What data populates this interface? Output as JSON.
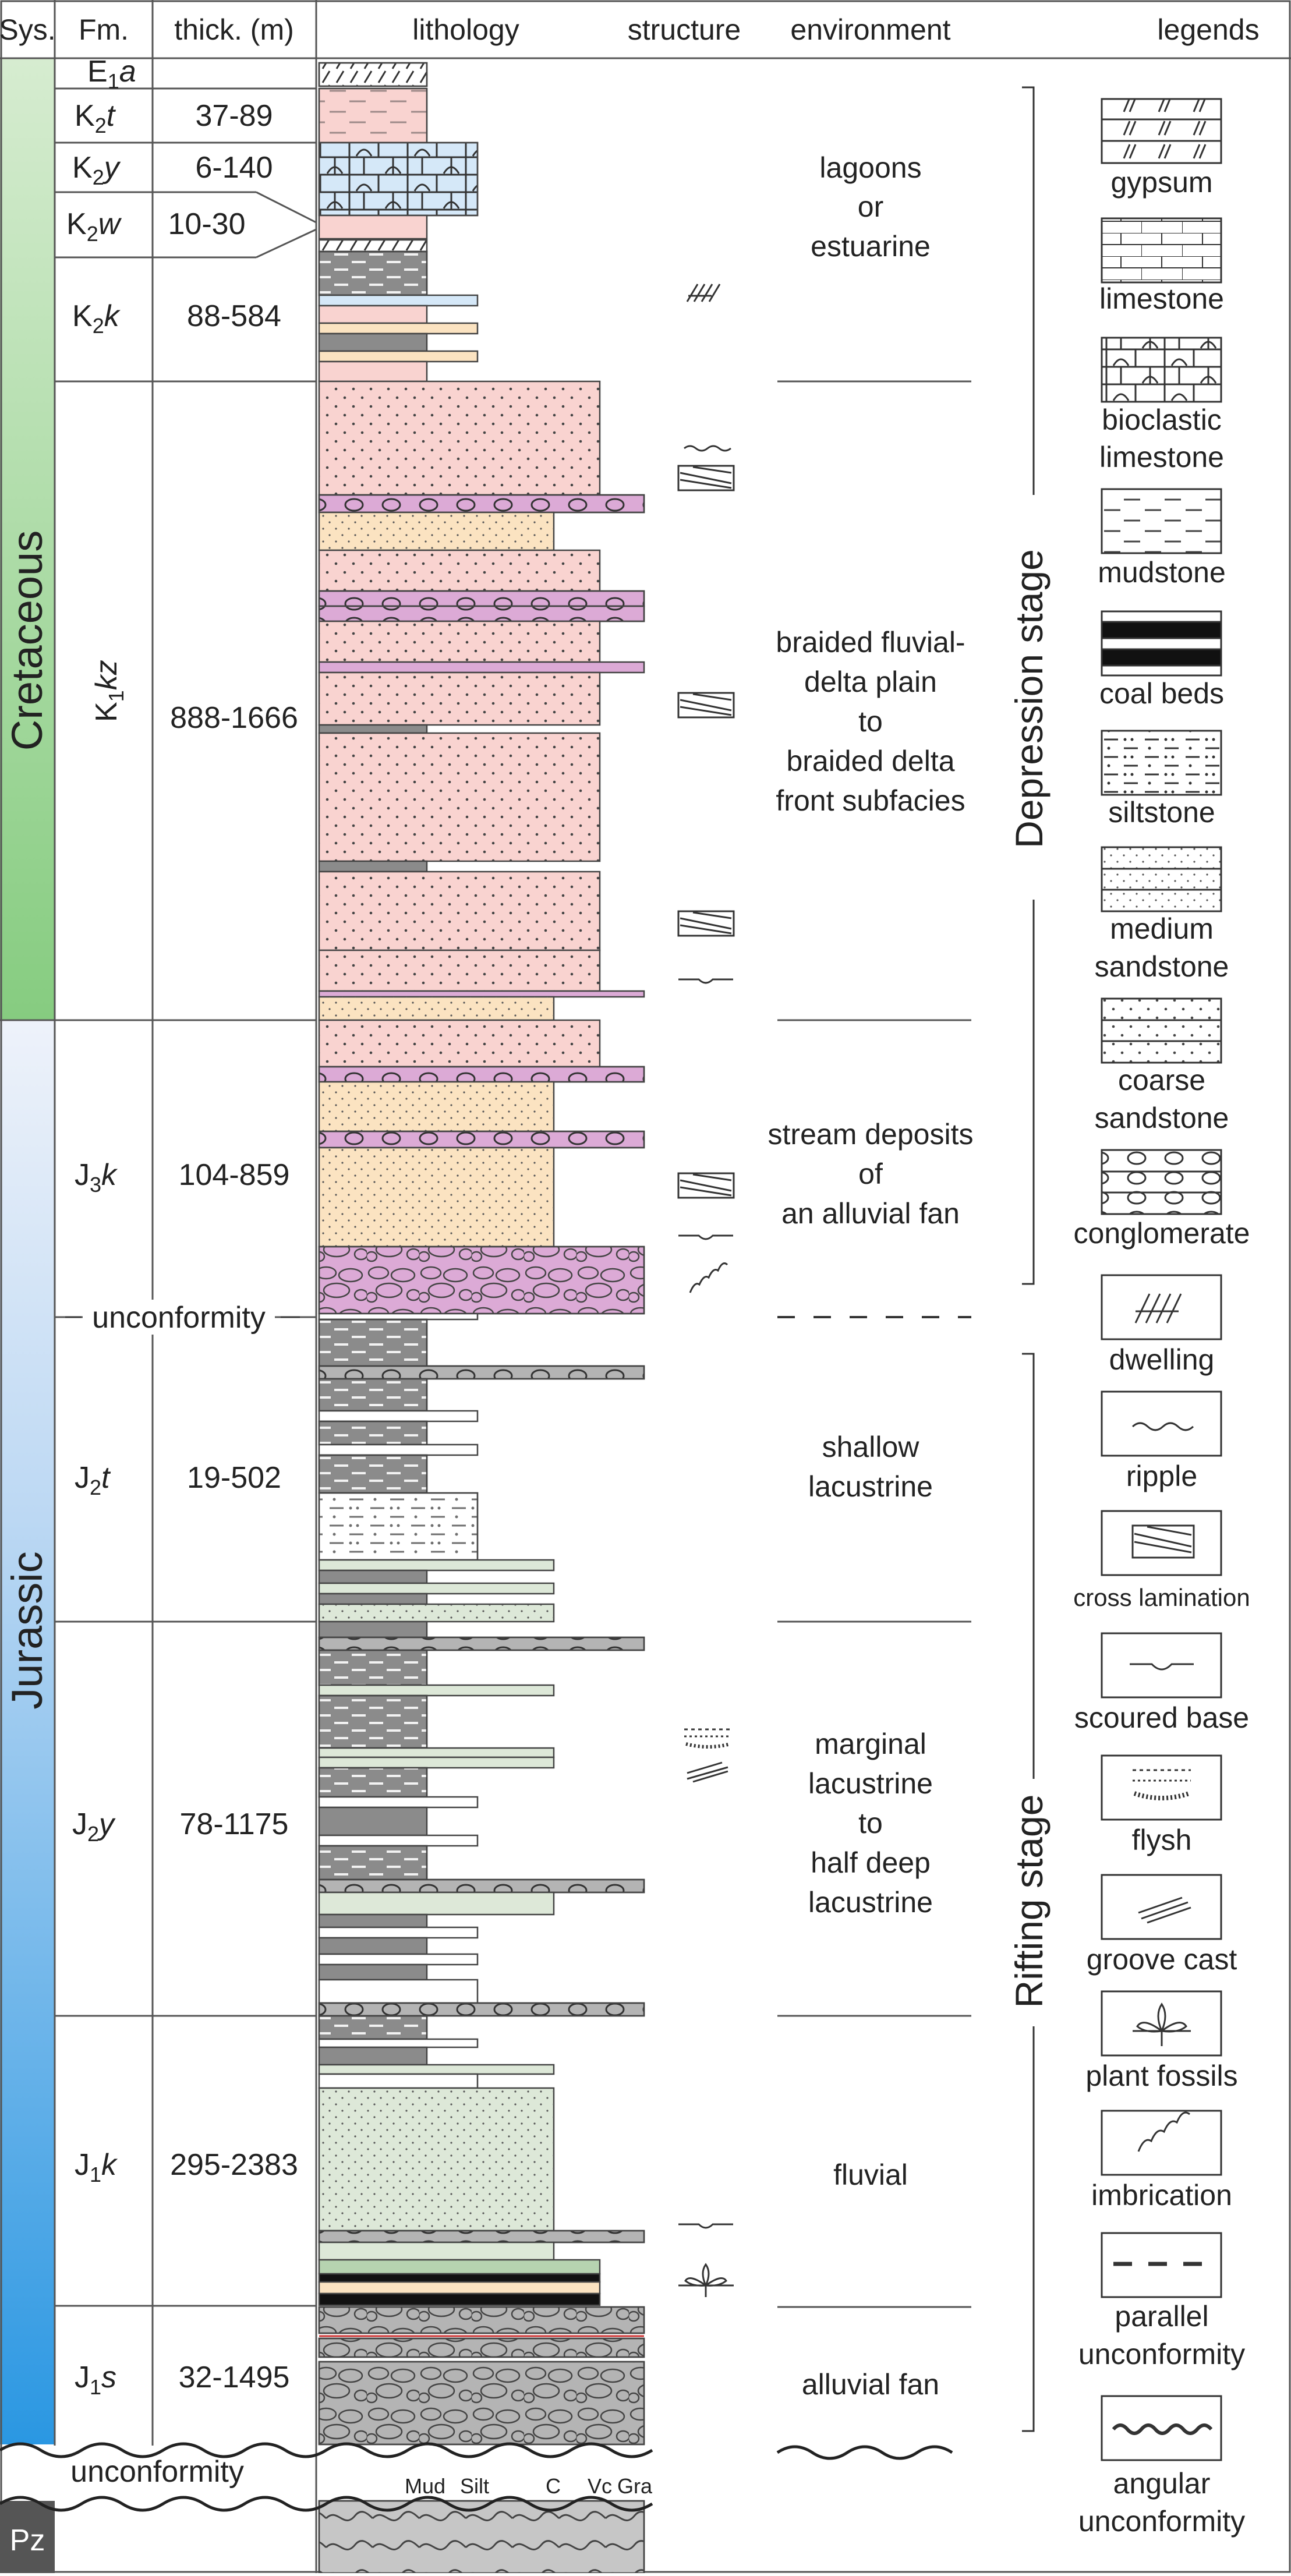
{
  "header": {
    "sys": "Sys.",
    "fm": "Fm.",
    "thick": "thick. (m)",
    "lithology": "lithology",
    "structure": "structure",
    "environment": "environment",
    "legends": "legends"
  },
  "systems": {
    "cretaceous": "Cretaceous",
    "jurassic": "Jurassic",
    "pz": "Pz"
  },
  "formations": [
    {
      "id": "e1a",
      "base": "E",
      "sub": "1",
      "suf": "a",
      "thick": ""
    },
    {
      "id": "k2t",
      "base": "K",
      "sub": "2",
      "suf": "t",
      "thick": "37-89"
    },
    {
      "id": "k2y",
      "base": "K",
      "sub": "2",
      "suf": "y",
      "thick": "6-140"
    },
    {
      "id": "k2w",
      "base": "K",
      "sub": "2",
      "suf": "w",
      "thick": "10-30"
    },
    {
      "id": "k2k",
      "base": "K",
      "sub": "2",
      "suf": "k",
      "thick": "88-584"
    },
    {
      "id": "k1kz",
      "base": "K",
      "sub": "1",
      "suf": "kz",
      "thick": "888-1666"
    },
    {
      "id": "j3k",
      "base": "J",
      "sub": "3",
      "suf": "k",
      "thick": "104-859"
    },
    {
      "id": "j2t",
      "base": "J",
      "sub": "2",
      "suf": "t",
      "thick": "19-502"
    },
    {
      "id": "j2y",
      "base": "J",
      "sub": "2",
      "suf": "y",
      "thick": "78-1175"
    },
    {
      "id": "j1k",
      "base": "J",
      "sub": "1",
      "suf": "k",
      "thick": "295-2383"
    },
    {
      "id": "j1s",
      "base": "J",
      "sub": "1",
      "suf": "s",
      "thick": "32-1495"
    }
  ],
  "unconformity_label": "unconformity",
  "bottom_unconformity_label": "unconformity",
  "grain_scale": [
    "Mud",
    "Silt",
    "C",
    "Vc",
    "Gra"
  ],
  "environments": {
    "lagoons": [
      "lagoons",
      "or",
      "estuarine"
    ],
    "braided": [
      "braided fluvial-",
      "delta plain",
      "to",
      "braided delta",
      "front subfacies"
    ],
    "stream": [
      "stream deposits",
      "of",
      "an alluvial fan"
    ],
    "shallow": [
      "shallow",
      "lacustrine"
    ],
    "marginal": [
      "marginal",
      "lacustrine",
      "to",
      "half deep",
      "lacustrine"
    ],
    "fluvial": [
      "fluvial"
    ],
    "alluvial": [
      "alluvial fan"
    ]
  },
  "stages": {
    "depression": "Depression stage",
    "rifting": "Rifting stage"
  },
  "legends": {
    "gypsum": [
      "gypsum"
    ],
    "limestone": [
      "limestone"
    ],
    "bioclastic": [
      "bioclastic",
      "limestone"
    ],
    "mudstone": [
      "mudstone"
    ],
    "coal": [
      "coal beds"
    ],
    "siltstone": [
      "siltstone"
    ],
    "medium": [
      "medium",
      "sandstone"
    ],
    "coarse": [
      "coarse",
      "sandstone"
    ],
    "conglomerate": [
      "conglomerate"
    ],
    "dwelling": [
      "dwelling"
    ],
    "ripple": [
      "ripple"
    ],
    "cross": [
      "cross lamination"
    ],
    "scoured": [
      "scoured base"
    ],
    "flysh": [
      "flysh"
    ],
    "groove": [
      "groove cast"
    ],
    "plant": [
      "plant fossils"
    ],
    "imbrication": [
      "imbrication"
    ],
    "parallel": [
      "parallel",
      "unconformity"
    ],
    "angular": [
      "angular",
      "unconformity"
    ]
  },
  "colors": {
    "cretaceous_top": "#cfe9c6",
    "cretaceous_bottom": "#8ccf84",
    "jurassic_top": "#e8eef8",
    "jurassic_bottom": "#2f9be3",
    "pink_sand": "#f9d3d0",
    "tan_sand": "#fbe3c1",
    "conglomerate_purple": "#dcaad6",
    "limestone_blue": "#d5e8f8",
    "mudstone_gray": "#8b8b8b",
    "green_sand": "#dde8d8",
    "gravel_gray": "#b4b4b4"
  }
}
